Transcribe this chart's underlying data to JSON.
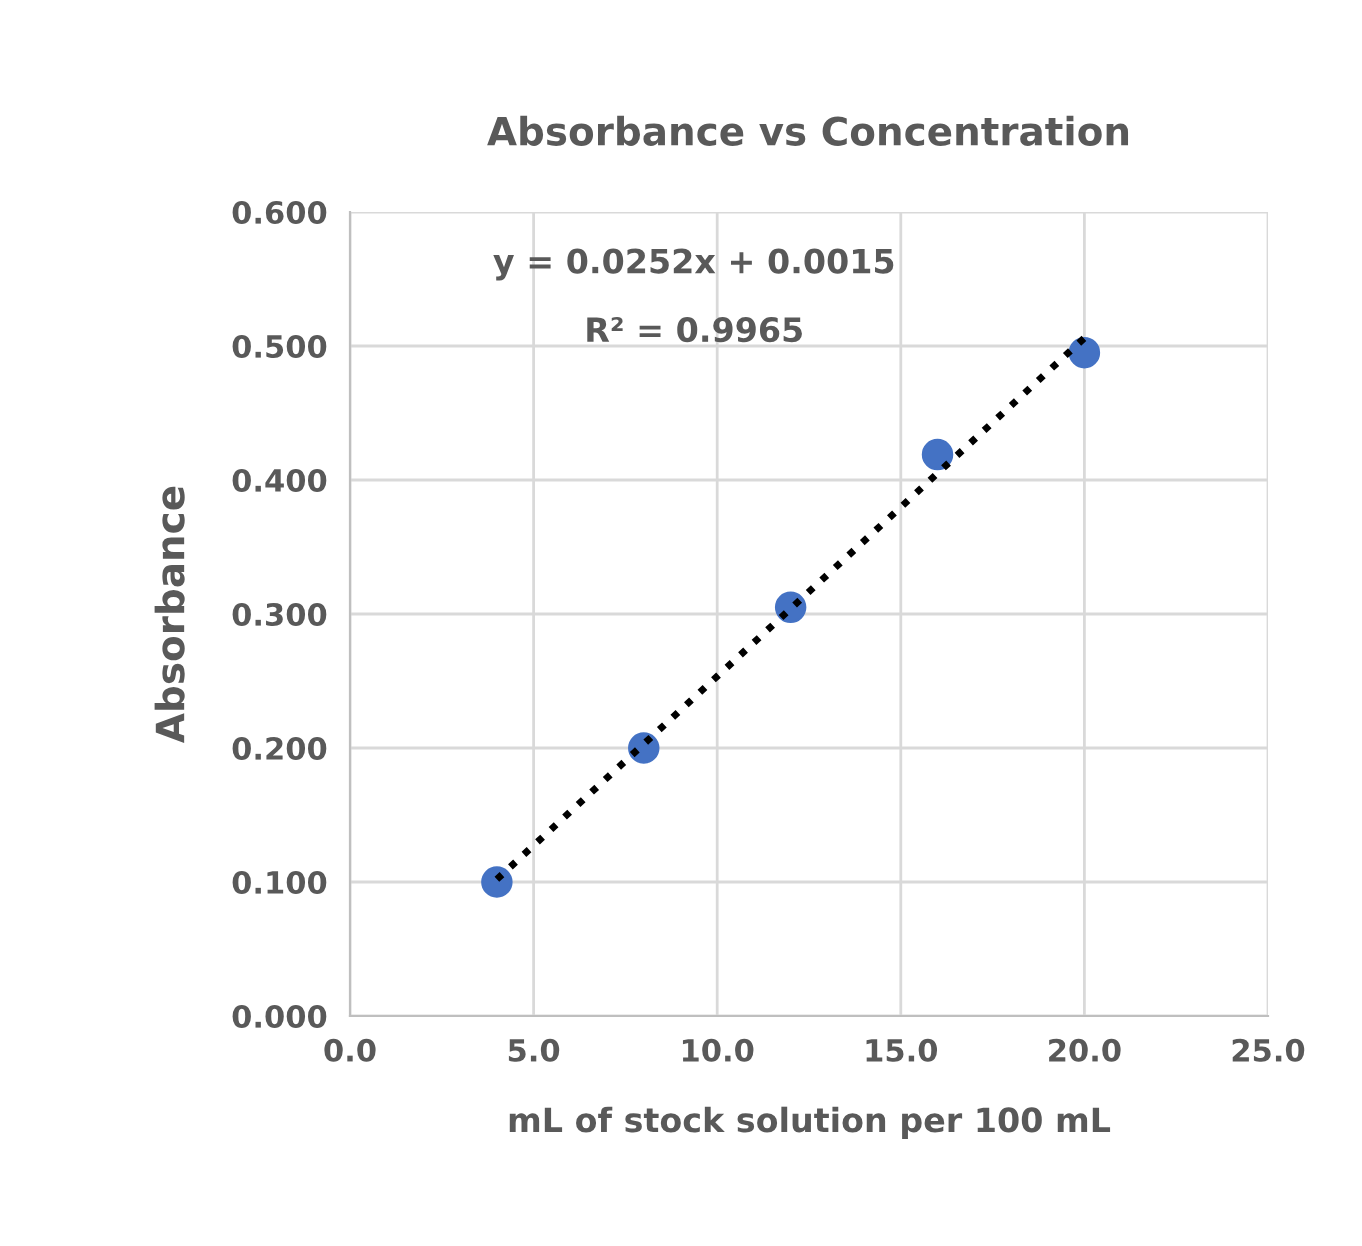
{
  "chart_data": {
    "type": "scatter",
    "title": "Absorbance vs Concentration",
    "xlabel": "mL of stock solution per 100 mL",
    "ylabel": "Absorbance",
    "x": [
      4,
      8,
      12,
      16,
      20
    ],
    "series": [
      {
        "color": "#4472c4",
        "values": [
          0.1,
          0.2,
          0.305,
          0.419,
          0.495
        ],
        "marker": "circle"
      },
      {
        "type": "line",
        "color": "#000000",
        "x": [
          4,
          20
        ],
        "values": [
          0.102,
          0.506
        ],
        "line_style": "dotted",
        "marker": "none"
      }
    ],
    "annotations": [
      "y = 0.0252x + 0.0015",
      "R² = 0.9965"
    ],
    "xlim": [
      0,
      25
    ],
    "xticks": [
      {
        "value": 0,
        "label": "0.0"
      },
      {
        "value": 5,
        "label": "5.0"
      },
      {
        "value": 10,
        "label": "10.0"
      },
      {
        "value": 15,
        "label": "15.0"
      },
      {
        "value": 20,
        "label": "20.0"
      },
      {
        "value": 25,
        "label": "25.0"
      }
    ],
    "ylim": [
      0,
      0.6
    ],
    "yticks": [
      {
        "value": 0,
        "label": "0.000"
      },
      {
        "value": 0.1,
        "label": "0.100"
      },
      {
        "value": 0.2,
        "label": "0.200"
      },
      {
        "value": 0.3,
        "label": "0.300"
      },
      {
        "value": 0.4,
        "label": "0.400"
      },
      {
        "value": 0.5,
        "label": "0.500"
      },
      {
        "value": 0.6,
        "label": "0.600"
      }
    ],
    "grid": true,
    "legend": false
  }
}
